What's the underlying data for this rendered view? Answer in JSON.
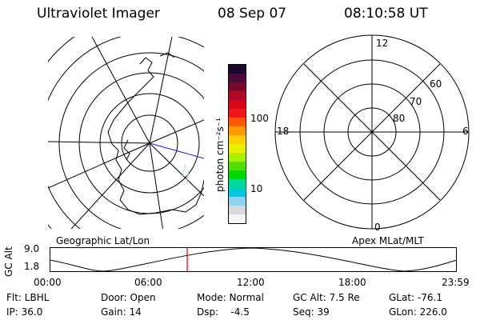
{
  "header": {
    "instrument": "Ultraviolet Imager",
    "date": "08 Sep 07",
    "time": "08:10:58 UT"
  },
  "colorbar": {
    "label": "photon cm⁻²s⁻¹",
    "ticks": [
      "100",
      "10"
    ],
    "colors_top_to_bottom": [
      "#1a0830",
      "#4a0a3a",
      "#7a0a2a",
      "#b0082a",
      "#d80818",
      "#f01818",
      "#ff5a00",
      "#ff9a00",
      "#ffd000",
      "#e8f000",
      "#a8f000",
      "#50e000",
      "#00d800",
      "#00d8a0",
      "#00c8e0",
      "#90d0f0",
      "#d8d8d8",
      "#f4f4f4"
    ]
  },
  "left_map": {
    "caption": "Geographic Lat/Lon"
  },
  "right_map": {
    "caption": "Apex MLat/MLT",
    "mlt_labels": [
      "12",
      "18",
      "6",
      "0"
    ],
    "lat_labels": [
      "60",
      "70",
      "80"
    ]
  },
  "timeline": {
    "axis_label": "GC Alt",
    "y_ticks": [
      "9.0",
      "1.8"
    ],
    "x_ticks": [
      "00:00",
      "06:00",
      "12:00",
      "18:00",
      "23:59"
    ],
    "marker_time": "08:10:58"
  },
  "status": {
    "flt": "Flt: LBHL",
    "ip": "IP: 36.0",
    "door": "Door: Open",
    "gain": "Gain: 14",
    "mode": "Mode: Normal",
    "dsp": "Dsp:    -4.5",
    "gc_alt": "GC Alt: 7.5 Re",
    "seq": "Seq: 39",
    "glat": "GLat: -76.1",
    "glon": "GLon: 226.0"
  }
}
